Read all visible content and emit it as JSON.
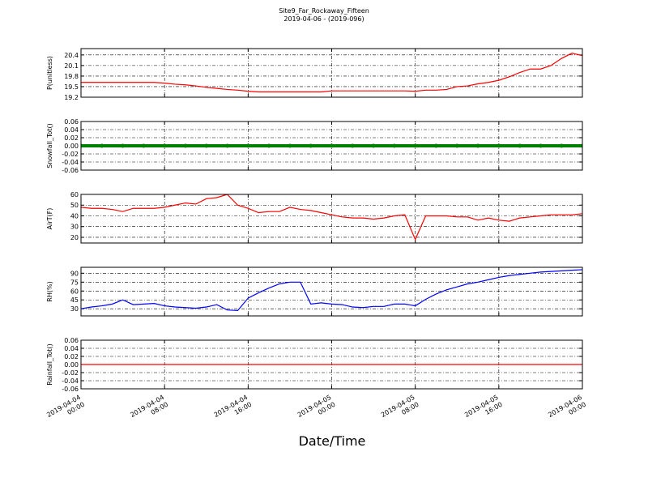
{
  "chart_data": [
    {
      "type": "line",
      "title": "Site9_Far_Rockaway_Fifteen",
      "subtitle": "2019-04-06 - (2019-096)",
      "ylabel": "P(unitless)",
      "color": "#ff0000",
      "xlim": [
        "2019-04-04 00:00",
        "2019-04-06 00:00"
      ],
      "xticks": [
        "2019-04-04 00:00",
        "2019-04-04 08:00",
        "2019-04-04 16:00",
        "2019-04-05 00:00",
        "2019-04-05 08:00",
        "2019-04-05 16:00",
        "2019-04-06 00:00"
      ],
      "ylim": [
        19.2,
        20.58
      ],
      "yticks": [
        {
          "value": 19.2,
          "label": "19.2"
        },
        19.5,
        19.8,
        20.1,
        20.4
      ],
      "grid": true,
      "x": [
        "2019-04-04 00:00",
        "2019-04-04 01:00",
        "2019-04-04 02:00",
        "2019-04-04 03:00",
        "2019-04-04 04:00",
        "2019-04-04 05:00",
        "2019-04-04 06:00",
        "2019-04-04 07:00",
        "2019-04-04 08:00",
        "2019-04-04 09:00",
        "2019-04-04 10:00",
        "2019-04-04 11:00",
        "2019-04-04 12:00",
        "2019-04-04 13:00",
        "2019-04-04 14:00",
        "2019-04-04 15:00",
        "2019-04-04 16:00",
        "2019-04-04 17:00",
        "2019-04-04 18:00",
        "2019-04-04 19:00",
        "2019-04-04 20:00",
        "2019-04-04 21:00",
        "2019-04-04 22:00",
        "2019-04-04 23:00",
        "2019-04-05 00:00",
        "2019-04-05 01:00",
        "2019-04-05 02:00",
        "2019-04-05 03:00",
        "2019-04-05 04:00",
        "2019-04-05 05:00",
        "2019-04-05 06:00",
        "2019-04-05 07:00",
        "2019-04-05 08:00",
        "2019-04-05 09:00",
        "2019-04-05 10:00",
        "2019-04-05 11:00",
        "2019-04-05 12:00",
        "2019-04-05 13:00",
        "2019-04-05 14:00",
        "2019-04-05 15:00",
        "2019-04-05 16:00",
        "2019-04-05 17:00",
        "2019-04-05 18:00",
        "2019-04-05 19:00",
        "2019-04-05 20:00",
        "2019-04-05 21:00",
        "2019-04-05 22:00",
        "2019-04-05 23:00",
        "2019-04-06 00:00"
      ],
      "values": [
        19.62,
        19.62,
        19.62,
        19.62,
        19.62,
        19.62,
        19.62,
        19.62,
        19.6,
        19.57,
        19.55,
        19.52,
        19.48,
        19.45,
        19.42,
        19.4,
        19.37,
        19.35,
        19.35,
        19.35,
        19.35,
        19.35,
        19.35,
        19.35,
        19.38,
        19.38,
        19.38,
        19.38,
        19.38,
        19.38,
        19.38,
        19.38,
        19.37,
        19.4,
        19.4,
        19.42,
        19.5,
        19.52,
        19.58,
        19.62,
        19.68,
        19.78,
        19.9,
        20.0,
        20.0,
        20.1,
        20.3,
        20.45,
        20.38
      ]
    },
    {
      "type": "scatter",
      "ylabel": "Snowfall_Tot()",
      "color": "#008000",
      "xlim": [
        "2019-04-04 00:00",
        "2019-04-06 00:00"
      ],
      "xticks": [
        "2019-04-04 00:00",
        "2019-04-04 08:00",
        "2019-04-04 16:00",
        "2019-04-05 00:00",
        "2019-04-05 08:00",
        "2019-04-05 16:00",
        "2019-04-06 00:00"
      ],
      "ylim": [
        -0.06,
        0.06
      ],
      "yticks": [
        -0.06,
        -0.04,
        -0.02,
        {
          "value": 0,
          "label": "0.00"
        },
        0.02,
        0.04,
        0.06
      ],
      "grid": true,
      "x": [
        "2019-04-04 00:00",
        "2019-04-04 02:00",
        "2019-04-04 04:00",
        "2019-04-04 06:00",
        "2019-04-04 08:00",
        "2019-04-04 10:00",
        "2019-04-04 12:00",
        "2019-04-04 14:00",
        "2019-04-04 16:00",
        "2019-04-04 18:00",
        "2019-04-04 20:00",
        "2019-04-04 22:00",
        "2019-04-05 00:00",
        "2019-04-05 02:00",
        "2019-04-05 04:00",
        "2019-04-05 06:00",
        "2019-04-05 08:00",
        "2019-04-05 10:00",
        "2019-04-05 12:00",
        "2019-04-05 14:00",
        "2019-04-05 16:00",
        "2019-04-05 18:00",
        "2019-04-05 20:00",
        "2019-04-05 22:00",
        "2019-04-06 00:00"
      ],
      "values": [
        0,
        0,
        0,
        0,
        0,
        0,
        0,
        0,
        0,
        0,
        0,
        0,
        0,
        0,
        0,
        0,
        0,
        0,
        0,
        0,
        0,
        0,
        0,
        0,
        0
      ]
    },
    {
      "type": "line",
      "ylabel": "AirT(F)",
      "color": "#ff0000",
      "xlim": [
        "2019-04-04 00:00",
        "2019-04-06 00:00"
      ],
      "xticks": [
        "2019-04-04 00:00",
        "2019-04-04 08:00",
        "2019-04-04 16:00",
        "2019-04-05 00:00",
        "2019-04-05 08:00",
        "2019-04-05 16:00",
        "2019-04-06 00:00"
      ],
      "ylim": [
        14.7,
        60
      ],
      "yticks": [
        20,
        30,
        40,
        50,
        60
      ],
      "grid": true,
      "x": [
        "2019-04-04 00:00",
        "2019-04-04 01:00",
        "2019-04-04 02:00",
        "2019-04-04 03:00",
        "2019-04-04 04:00",
        "2019-04-04 05:00",
        "2019-04-04 06:00",
        "2019-04-04 07:00",
        "2019-04-04 08:00",
        "2019-04-04 09:00",
        "2019-04-04 10:00",
        "2019-04-04 11:00",
        "2019-04-04 12:00",
        "2019-04-04 13:00",
        "2019-04-04 14:00",
        "2019-04-04 15:00",
        "2019-04-04 16:00",
        "2019-04-04 17:00",
        "2019-04-04 18:00",
        "2019-04-04 19:00",
        "2019-04-04 20:00",
        "2019-04-04 21:00",
        "2019-04-04 22:00",
        "2019-04-04 23:00",
        "2019-04-05 00:00",
        "2019-04-05 01:00",
        "2019-04-05 02:00",
        "2019-04-05 03:00",
        "2019-04-05 04:00",
        "2019-04-05 05:00",
        "2019-04-05 06:00",
        "2019-04-05 07:00",
        "2019-04-05 08:00",
        "2019-04-05 09:00",
        "2019-04-05 10:00",
        "2019-04-05 11:00",
        "2019-04-05 12:00",
        "2019-04-05 13:00",
        "2019-04-05 14:00",
        "2019-04-05 15:00",
        "2019-04-05 16:00",
        "2019-04-05 17:00",
        "2019-04-05 18:00",
        "2019-04-05 19:00",
        "2019-04-05 20:00",
        "2019-04-05 21:00",
        "2019-04-05 22:00",
        "2019-04-05 23:00",
        "2019-04-06 00:00"
      ],
      "values": [
        48,
        47,
        47,
        46,
        44,
        47,
        47,
        47,
        48,
        50,
        52,
        51,
        56,
        57,
        60,
        50,
        47,
        43,
        44,
        44,
        48,
        46,
        45,
        43,
        41,
        39,
        38,
        38,
        37,
        38,
        40,
        41,
        18,
        40,
        40,
        40,
        39,
        39,
        36,
        38,
        36,
        35,
        38,
        39,
        40,
        41,
        41,
        41,
        42
      ]
    },
    {
      "type": "line",
      "ylabel": "RH(%)",
      "color": "#0000ff",
      "xlim": [
        "2019-04-04 00:00",
        "2019-04-06 00:00"
      ],
      "xticks": [
        "2019-04-04 00:00",
        "2019-04-04 08:00",
        "2019-04-04 16:00",
        "2019-04-05 00:00",
        "2019-04-05 08:00",
        "2019-04-05 16:00",
        "2019-04-06 00:00"
      ],
      "ylim": [
        18,
        100
      ],
      "yticks": [
        30,
        45,
        60,
        75,
        90
      ],
      "grid": true,
      "x": [
        "2019-04-04 00:00",
        "2019-04-04 01:00",
        "2019-04-04 02:00",
        "2019-04-04 03:00",
        "2019-04-04 04:00",
        "2019-04-04 05:00",
        "2019-04-04 06:00",
        "2019-04-04 07:00",
        "2019-04-04 08:00",
        "2019-04-04 09:00",
        "2019-04-04 10:00",
        "2019-04-04 11:00",
        "2019-04-04 12:00",
        "2019-04-04 13:00",
        "2019-04-04 14:00",
        "2019-04-04 15:00",
        "2019-04-04 16:00",
        "2019-04-04 17:00",
        "2019-04-04 18:00",
        "2019-04-04 19:00",
        "2019-04-04 20:00",
        "2019-04-04 21:00",
        "2019-04-04 22:00",
        "2019-04-04 23:00",
        "2019-04-05 00:00",
        "2019-04-05 01:00",
        "2019-04-05 02:00",
        "2019-04-05 03:00",
        "2019-04-05 04:00",
        "2019-04-05 05:00",
        "2019-04-05 06:00",
        "2019-04-05 07:00",
        "2019-04-05 08:00",
        "2019-04-05 09:00",
        "2019-04-05 10:00",
        "2019-04-05 11:00",
        "2019-04-05 12:00",
        "2019-04-05 13:00",
        "2019-04-05 14:00",
        "2019-04-05 15:00",
        "2019-04-05 16:00",
        "2019-04-05 17:00",
        "2019-04-05 18:00",
        "2019-04-05 19:00",
        "2019-04-05 20:00",
        "2019-04-05 21:00",
        "2019-04-05 22:00",
        "2019-04-05 23:00",
        "2019-04-06 00:00"
      ],
      "values": [
        30,
        33,
        35,
        38,
        45,
        37,
        38,
        39,
        35,
        33,
        32,
        31,
        33,
        37,
        28,
        27,
        48,
        57,
        65,
        72,
        75,
        75,
        38,
        40,
        38,
        37,
        33,
        32,
        34,
        34,
        38,
        38,
        35,
        46,
        55,
        62,
        67,
        72,
        75,
        79,
        83,
        86,
        88,
        90,
        92,
        93,
        94,
        95,
        96
      ]
    },
    {
      "type": "line",
      "ylabel": "Rainfall_Tot()",
      "xlabel": "Date/Time",
      "color": "#ff0000",
      "xlim": [
        "2019-04-04 00:00",
        "2019-04-06 00:00"
      ],
      "xticks": [
        "2019-04-04 00:00",
        "2019-04-04 08:00",
        "2019-04-04 16:00",
        "2019-04-05 00:00",
        "2019-04-05 08:00",
        "2019-04-05 16:00",
        "2019-04-06 00:00"
      ],
      "ylim": [
        -0.06,
        0.06
      ],
      "yticks": [
        -0.06,
        -0.04,
        -0.02,
        {
          "value": 0,
          "label": "0.00"
        },
        0.02,
        0.04,
        0.06
      ],
      "grid": true,
      "x": [
        "2019-04-04 00:00",
        "2019-04-04 02:00",
        "2019-04-04 04:00",
        "2019-04-04 06:00",
        "2019-04-04 08:00",
        "2019-04-04 10:00",
        "2019-04-04 12:00",
        "2019-04-04 14:00",
        "2019-04-04 16:00",
        "2019-04-04 18:00",
        "2019-04-04 20:00",
        "2019-04-04 22:00",
        "2019-04-05 00:00",
        "2019-04-05 02:00",
        "2019-04-05 04:00",
        "2019-04-05 06:00",
        "2019-04-05 08:00",
        "2019-04-05 10:00",
        "2019-04-05 12:00",
        "2019-04-05 14:00",
        "2019-04-05 16:00",
        "2019-04-05 18:00",
        "2019-04-05 20:00",
        "2019-04-05 22:00",
        "2019-04-06 00:00"
      ],
      "values": [
        0,
        0,
        0,
        0,
        0,
        0,
        0,
        0,
        0,
        0,
        0,
        0,
        0,
        0,
        0,
        0,
        0,
        0,
        0,
        0,
        0,
        0,
        0,
        0,
        0
      ]
    }
  ]
}
